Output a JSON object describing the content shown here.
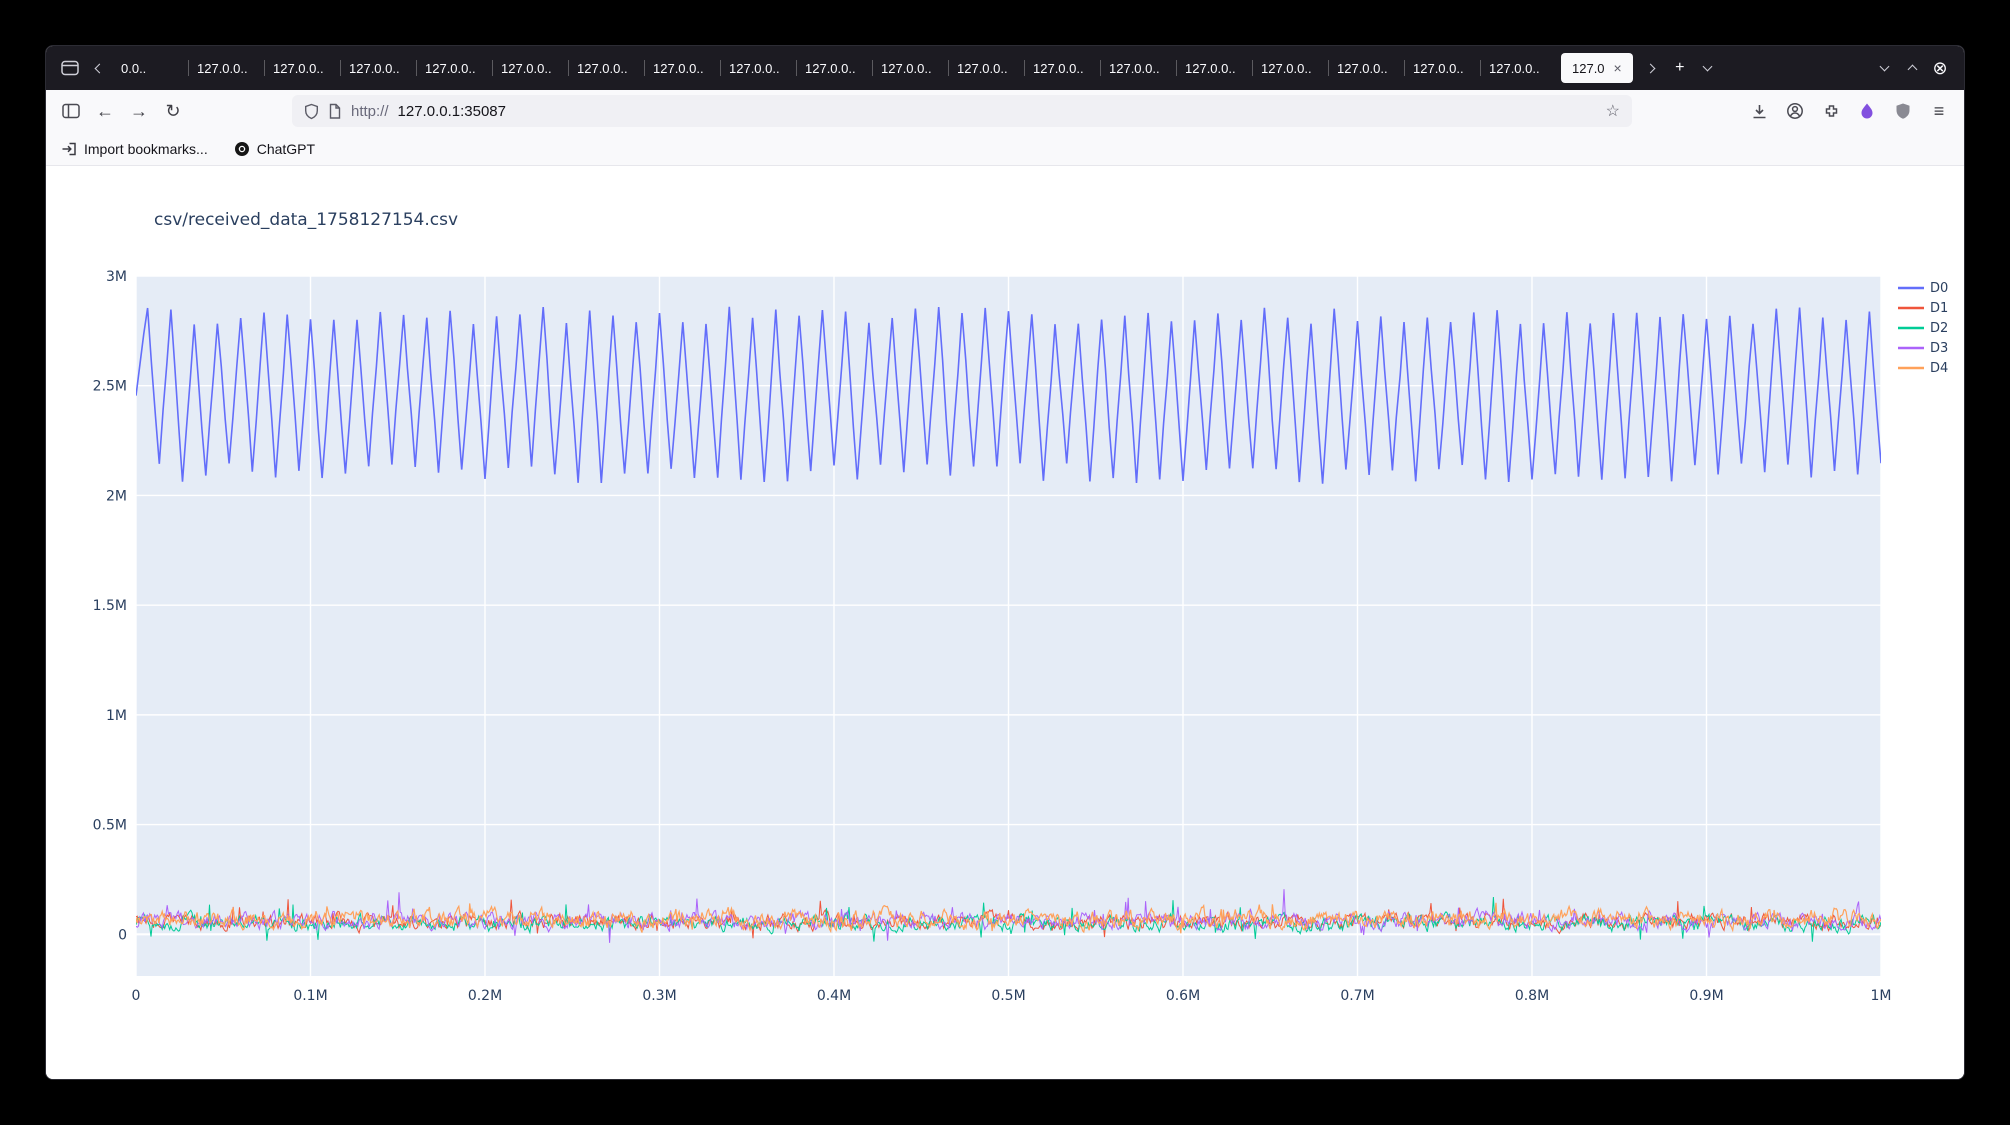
{
  "browser": {
    "tabbar": {
      "tabs": [
        {
          "label": "0.0.."
        },
        {
          "label": "127.0.0.."
        },
        {
          "label": "127.0.0.."
        },
        {
          "label": "127.0.0.."
        },
        {
          "label": "127.0.0.."
        },
        {
          "label": "127.0.0.."
        },
        {
          "label": "127.0.0.."
        },
        {
          "label": "127.0.0.."
        },
        {
          "label": "127.0.0.."
        },
        {
          "label": "127.0.0.."
        },
        {
          "label": "127.0.0.."
        },
        {
          "label": "127.0.0.."
        },
        {
          "label": "127.0.0.."
        },
        {
          "label": "127.0.0.."
        },
        {
          "label": "127.0.0.."
        },
        {
          "label": "127.0.0.."
        },
        {
          "label": "127.0.0.."
        },
        {
          "label": "127.0.0.."
        },
        {
          "label": "127.0.0.."
        }
      ],
      "active_tab": {
        "label": "127.0"
      }
    },
    "icons": {
      "close_x": "×",
      "plus": "+",
      "back": "←",
      "forward": "→",
      "reload": "↻",
      "menu": "≡",
      "star": "☆",
      "close_circle": "⊗"
    },
    "navbar": {
      "url_scheme": "http://",
      "url_host": "127.0.0.1:35087"
    },
    "bookmarks": {
      "import_label": "Import bookmarks...",
      "chatgpt_label": "ChatGPT"
    }
  },
  "chart_data": {
    "type": "line",
    "title": "csv/received_data_1758127154.csv",
    "xlabel": "",
    "ylabel": "",
    "xlim": [
      0,
      1000000
    ],
    "ylim": [
      -190000,
      3000000
    ],
    "grid": true,
    "legend_position": "right",
    "plot_bg": "#e5ecf6",
    "grid_color": "#ffffff",
    "tick_color": "#2a3f5f",
    "xticks": {
      "values": [
        0,
        100000,
        200000,
        300000,
        400000,
        500000,
        600000,
        700000,
        800000,
        900000,
        1000000
      ],
      "labels": [
        "0",
        "0.1M",
        "0.2M",
        "0.3M",
        "0.4M",
        "0.5M",
        "0.6M",
        "0.7M",
        "0.8M",
        "0.9M",
        "1M"
      ]
    },
    "yticks": {
      "values": [
        0,
        500000,
        1000000,
        1500000,
        2000000,
        2500000,
        3000000
      ],
      "labels": [
        "0",
        "0.5M",
        "1M",
        "1.5M",
        "2M",
        "2.5M",
        "3M"
      ]
    },
    "series": [
      {
        "name": "D0",
        "color": "#636efa",
        "pattern": "triangle-wave",
        "min": 2050000,
        "max": 2860000,
        "cycles": 75,
        "width": 1.6
      },
      {
        "name": "D1",
        "color": "#ef553b",
        "pattern": "noise",
        "center": 55000,
        "spread": 52000,
        "spike_up": 95000,
        "spike_down": 70000,
        "points": 1400,
        "width": 1
      },
      {
        "name": "D2",
        "color": "#00cc96",
        "pattern": "noise",
        "center": 50000,
        "spread": 50000,
        "spike_up": 105000,
        "spike_down": 80000,
        "points": 1400,
        "width": 1
      },
      {
        "name": "D3",
        "color": "#ab63fa",
        "pattern": "noise",
        "center": 60000,
        "spread": 55000,
        "spike_up": 110000,
        "spike_down": 80000,
        "points": 1400,
        "width": 1
      },
      {
        "name": "D4",
        "color": "#ffa15a",
        "pattern": "noise",
        "center": 70000,
        "spread": 60000,
        "spike_up": 55000,
        "spike_down": 40000,
        "points": 1600,
        "width": 1.2
      }
    ]
  }
}
